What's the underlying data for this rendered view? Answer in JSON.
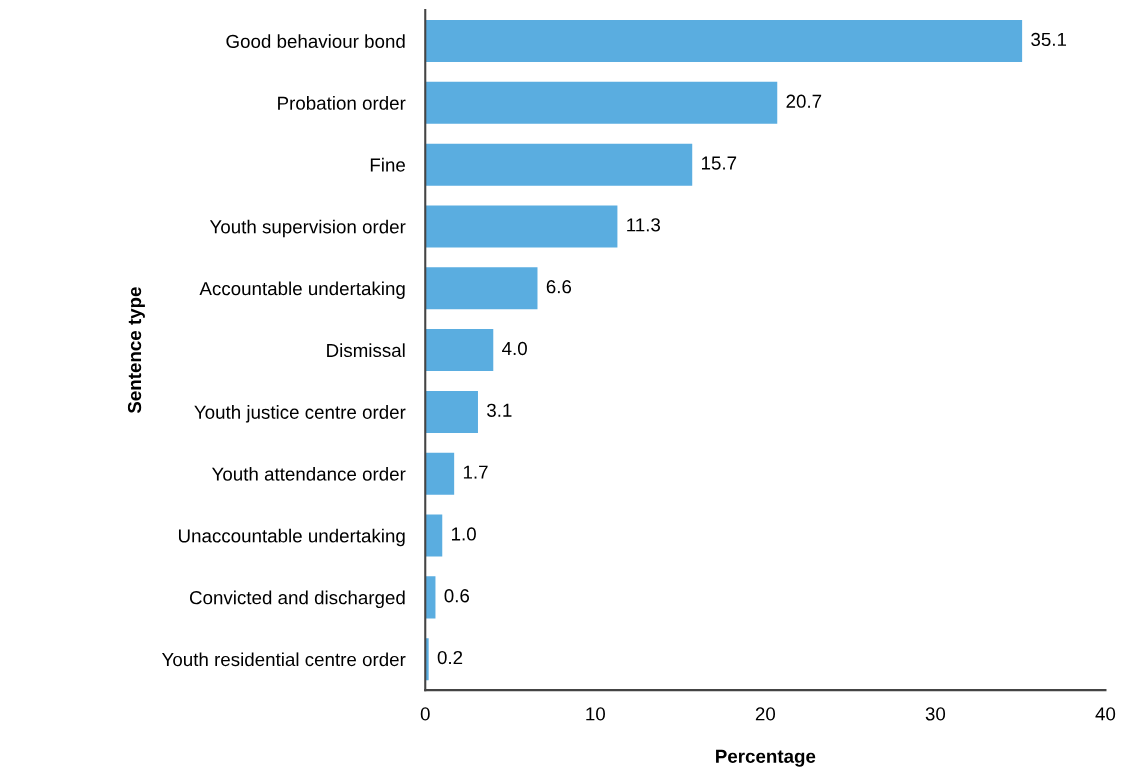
{
  "chart_data": {
    "type": "bar",
    "orientation": "horizontal",
    "xlabel": "Percentage",
    "ylabel": "Sentence type",
    "categories": [
      "Good behaviour bond",
      "Probation order",
      "Fine",
      "Youth supervision order",
      "Accountable undertaking",
      "Dismissal",
      "Youth justice centre order",
      "Youth attendance order",
      "Unaccountable undertaking",
      "Convicted and discharged",
      "Youth residential centre order"
    ],
    "values": [
      35.1,
      20.7,
      15.7,
      11.3,
      6.6,
      4.0,
      3.1,
      1.7,
      1.0,
      0.6,
      0.2
    ],
    "value_labels": [
      "35.1",
      "20.7",
      "15.7",
      "11.3",
      "6.6",
      "4.0",
      "3.1",
      "1.7",
      "1.0",
      "0.6",
      "0.2"
    ],
    "color": "#5aade0",
    "xlim": [
      0,
      40
    ],
    "xticks": [
      0,
      10,
      20,
      30,
      40
    ],
    "grid": false,
    "legend": false
  }
}
